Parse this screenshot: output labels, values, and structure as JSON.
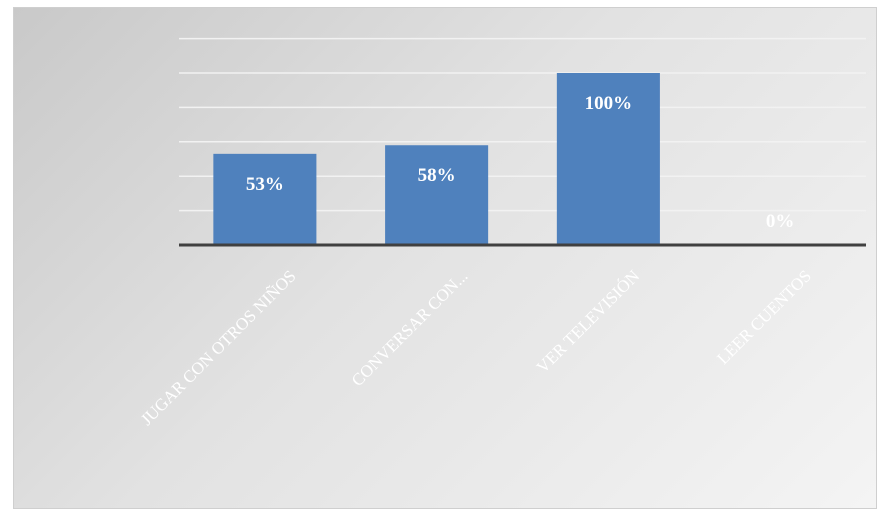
{
  "chart_data": {
    "type": "bar",
    "categories": [
      "JUGAR CON OTROS NIÑOS",
      "CONVERSAR CON...",
      "VER TELEVISIÓN",
      "LEER CUENTOS"
    ],
    "values": [
      53,
      58,
      100,
      0
    ],
    "data_labels": [
      "53%",
      "58%",
      "100%",
      "0%"
    ],
    "title": "",
    "xlabel": "",
    "ylabel": "",
    "ylim": [
      0,
      100
    ],
    "grid": true,
    "bar_color": "#4f81bd",
    "gridline_color": "#f2f2f2",
    "axis_color": "#404040"
  }
}
